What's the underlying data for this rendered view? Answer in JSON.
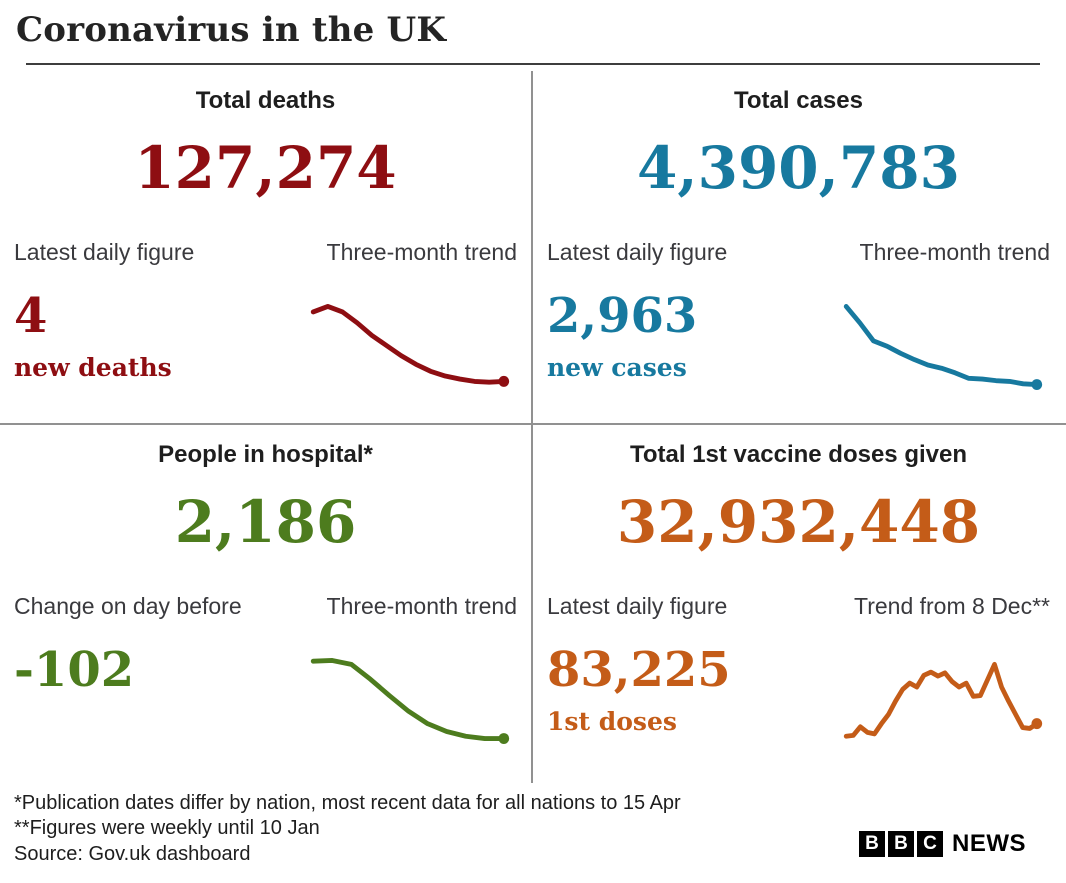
{
  "header": {
    "title": "Coronavirus in the UK"
  },
  "panels": [
    {
      "title": "Total deaths",
      "total": "127,274",
      "label_left": "Latest daily figure",
      "label_right": "Three-month trend",
      "figure": "4",
      "figure_sub": "new deaths",
      "color": "#8e0e12"
    },
    {
      "title": "Total cases",
      "total": "4,390,783",
      "label_left": "Latest daily figure",
      "label_right": "Three-month trend",
      "figure": "2,963",
      "figure_sub": "new cases",
      "color": "#17799f"
    },
    {
      "title": "People in hospital*",
      "total": "2,186",
      "label_left": "Change on day before",
      "label_right": "Three-month trend",
      "figure": "-102",
      "figure_sub": "",
      "color": "#4d7c1e"
    },
    {
      "title": "Total 1st vaccine doses given",
      "total": "32,932,448",
      "label_left": "Latest daily figure",
      "label_right": "Trend from 8 Dec**",
      "figure": "83,225",
      "figure_sub": "1st doses",
      "color": "#c45c18"
    }
  ],
  "footer": {
    "note1": "*Publication dates differ by nation, most recent data for all nations to 15 Apr",
    "note2": "**Figures were weekly until 10 Jan",
    "note3": "Source: Gov.uk dashboard",
    "logo_blocks": [
      "B",
      "B",
      "C"
    ],
    "logo_text": "NEWS"
  },
  "chart_data": [
    {
      "type": "line",
      "title": "Total deaths — three-month trend sparkline",
      "legend_position": "none",
      "grid": false,
      "axis_labels_shown": false,
      "scale": "relative 0-100 (sparkline, no axes shown)",
      "values": [
        93,
        100,
        93,
        79,
        63,
        50,
        37,
        26,
        17,
        11,
        7,
        4,
        3,
        4
      ],
      "color": "#8e0e12",
      "end_dot": true
    },
    {
      "type": "line",
      "title": "Total cases — three-month trend sparkline",
      "legend_position": "none",
      "grid": false,
      "axis_labels_shown": false,
      "scale": "relative 0-100 (sparkline, no axes shown)",
      "values": [
        100,
        79,
        56,
        49,
        40,
        32,
        25,
        21,
        15,
        8,
        7,
        5,
        4,
        1,
        0
      ],
      "color": "#17799f",
      "end_dot": true
    },
    {
      "type": "line",
      "title": "People in hospital — three-month trend sparkline",
      "legend_position": "none",
      "grid": false,
      "axis_labels_shown": false,
      "scale": "relative 0-100 (sparkline, no axes shown)",
      "values": [
        99,
        100,
        95,
        76,
        55,
        35,
        19,
        9,
        3,
        0,
        0
      ],
      "color": "#4d7c1e",
      "end_dot": true
    },
    {
      "type": "line",
      "title": "1st vaccine doses — trend from 8 Dec sparkline",
      "legend_position": "none",
      "grid": false,
      "axis_labels_shown": false,
      "scale": "relative 0-100 (sparkline, no axes shown)",
      "values": [
        3,
        4,
        15,
        8,
        6,
        19,
        31,
        48,
        63,
        71,
        66,
        81,
        85,
        80,
        84,
        73,
        66,
        71,
        54,
        55,
        75,
        95,
        66,
        48,
        31,
        14,
        13,
        19
      ],
      "color": "#c45c18",
      "end_dot": true
    }
  ]
}
